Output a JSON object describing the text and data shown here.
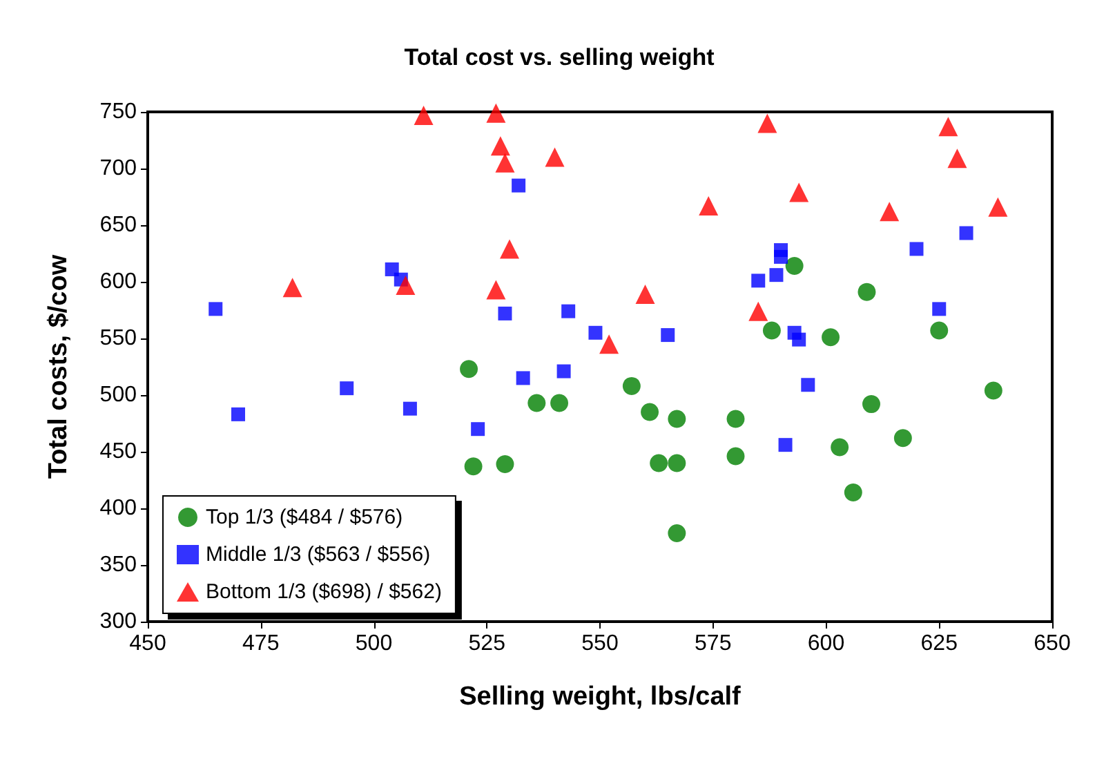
{
  "chart_data": {
    "type": "scatter",
    "title": "Total cost vs. selling weight",
    "xlabel": "Selling weight, lbs/calf",
    "ylabel": "Total costs, $/cow",
    "series": [
      {
        "name": "Top 1/3 ($484 / $576)",
        "color": "#008000",
        "marker": "circle",
        "x": [
          521,
          522,
          529,
          536,
          541,
          557,
          561,
          563,
          567,
          567,
          567,
          580,
          580,
          588,
          593,
          601,
          603,
          606,
          609,
          610,
          617,
          625,
          637
        ],
        "values": [
          523,
          437,
          439,
          493,
          493,
          508,
          485,
          440,
          479,
          440,
          378,
          446,
          479,
          557,
          614,
          551,
          454,
          414,
          591,
          492,
          462,
          557,
          504
        ]
      },
      {
        "name": "Middle 1/3 ($563 / $556)",
        "color": "#0000ff",
        "marker": "square",
        "x": [
          465,
          470,
          494,
          504,
          506,
          508,
          523,
          529,
          532,
          533,
          543,
          542,
          549,
          565,
          585,
          589,
          590,
          590,
          593,
          594,
          596,
          591,
          620,
          631,
          625
        ],
        "values": [
          576,
          483,
          506,
          611,
          602,
          488,
          470,
          572,
          685,
          515,
          574,
          521,
          555,
          553,
          601,
          606,
          628,
          622,
          555,
          549,
          509,
          456,
          629,
          643,
          576
        ]
      },
      {
        "name": "Bottom 1/3 ($698) / $562)",
        "color": "#ff0000",
        "marker": "triangle",
        "x": [
          511,
          527,
          528,
          529,
          540,
          530,
          482,
          507,
          527,
          552,
          560,
          574,
          587,
          585,
          594,
          614,
          627,
          629,
          638
        ],
        "values": [
          747,
          749,
          720,
          705,
          710,
          629,
          595,
          597,
          593,
          545,
          589,
          667,
          740,
          574,
          679,
          662,
          737,
          709,
          666
        ]
      }
    ],
    "xlim": [
      450,
      650
    ],
    "xticks": [
      450,
      475,
      500,
      525,
      550,
      575,
      600,
      625,
      650
    ],
    "ylim": [
      300,
      750
    ],
    "yticks": [
      300,
      350,
      400,
      450,
      500,
      550,
      600,
      650,
      700,
      750
    ],
    "grid": false,
    "legend": "bottom left"
  }
}
